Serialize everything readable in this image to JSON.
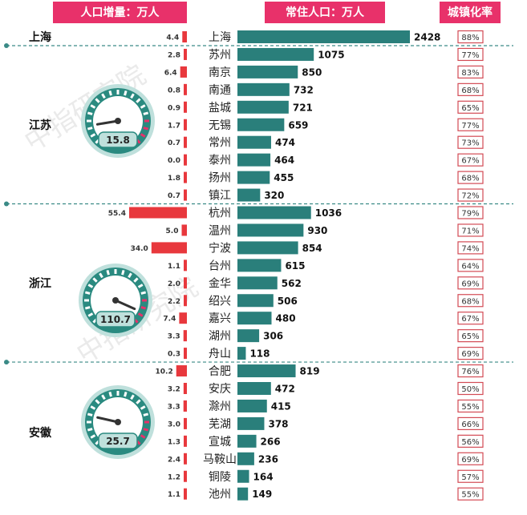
{
  "watermark": "中指研究院",
  "chart_data": {
    "type": "bar",
    "title": "",
    "columns": {
      "increase": "人口增量：万人",
      "population": "常住人口：万人",
      "urbanization": "城镇化率"
    },
    "colors": {
      "header": "#e8316a",
      "increase_bar": "#e8383d",
      "population_bar": "#2a7f7b",
      "gauge_fill": "#2a8a80",
      "gauge_ring": "#bfe0dc",
      "divider": "#3a8a86",
      "urbanization_border": "#d34a54"
    },
    "gauge_max": 120,
    "groups": [
      {
        "province": "上海",
        "gauge": null,
        "cities": [
          {
            "name": "上海",
            "increase": 4.4,
            "population": 2428,
            "urbanization": "88%"
          }
        ]
      },
      {
        "province": "江苏",
        "gauge": 15.8,
        "gauge_label": "15.8",
        "cities": [
          {
            "name": "苏州",
            "increase": 2.8,
            "population": 1075,
            "urbanization": "77%"
          },
          {
            "name": "南京",
            "increase": 6.4,
            "population": 850,
            "urbanization": "83%"
          },
          {
            "name": "南通",
            "increase": 0.8,
            "population": 732,
            "urbanization": "68%"
          },
          {
            "name": "盐城",
            "increase": 0.9,
            "population": 721,
            "urbanization": "65%"
          },
          {
            "name": "无锡",
            "increase": 1.7,
            "population": 659,
            "urbanization": "77%"
          },
          {
            "name": "常州",
            "increase": 0.7,
            "population": 474,
            "urbanization": "73%"
          },
          {
            "name": "泰州",
            "increase": 0.0,
            "population": 464,
            "urbanization": "67%"
          },
          {
            "name": "扬州",
            "increase": 1.8,
            "population": 455,
            "urbanization": "68%"
          },
          {
            "name": "镇江",
            "increase": 0.7,
            "population": 320,
            "urbanization": "72%"
          }
        ]
      },
      {
        "province": "浙江",
        "gauge": 110.7,
        "gauge_label": "110.7",
        "cities": [
          {
            "name": "杭州",
            "increase": 55.4,
            "population": 1036,
            "urbanization": "79%"
          },
          {
            "name": "温州",
            "increase": 5.0,
            "population": 930,
            "urbanization": "71%"
          },
          {
            "name": "宁波",
            "increase": 34.0,
            "population": 854,
            "urbanization": "74%"
          },
          {
            "name": "台州",
            "increase": 1.1,
            "population": 615,
            "urbanization": "64%"
          },
          {
            "name": "金华",
            "increase": 2.0,
            "population": 562,
            "urbanization": "69%"
          },
          {
            "name": "绍兴",
            "increase": 2.2,
            "population": 506,
            "urbanization": "68%"
          },
          {
            "name": "嘉兴",
            "increase": 7.4,
            "population": 480,
            "urbanization": "67%"
          },
          {
            "name": "湖州",
            "increase": 3.3,
            "population": 306,
            "urbanization": "65%"
          },
          {
            "name": "舟山",
            "increase": 0.3,
            "population": 118,
            "urbanization": "69%"
          }
        ]
      },
      {
        "province": "安徽",
        "gauge": 25.7,
        "gauge_label": "25.7",
        "cities": [
          {
            "name": "合肥",
            "increase": 10.2,
            "population": 819,
            "urbanization": "76%"
          },
          {
            "name": "安庆",
            "increase": 3.2,
            "population": 472,
            "urbanization": "50%"
          },
          {
            "name": "滁州",
            "increase": 3.3,
            "population": 415,
            "urbanization": "55%"
          },
          {
            "name": "芜湖",
            "increase": 3.0,
            "population": 378,
            "urbanization": "66%"
          },
          {
            "name": "宣城",
            "increase": 1.3,
            "population": 266,
            "urbanization": "56%"
          },
          {
            "name": "马鞍山",
            "increase": 2.4,
            "population": 236,
            "urbanization": "69%"
          },
          {
            "name": "铜陵",
            "increase": 1.2,
            "population": 164,
            "urbanization": "57%"
          },
          {
            "name": "池州",
            "increase": 1.1,
            "population": 149,
            "urbanization": "55%"
          }
        ]
      }
    ]
  }
}
